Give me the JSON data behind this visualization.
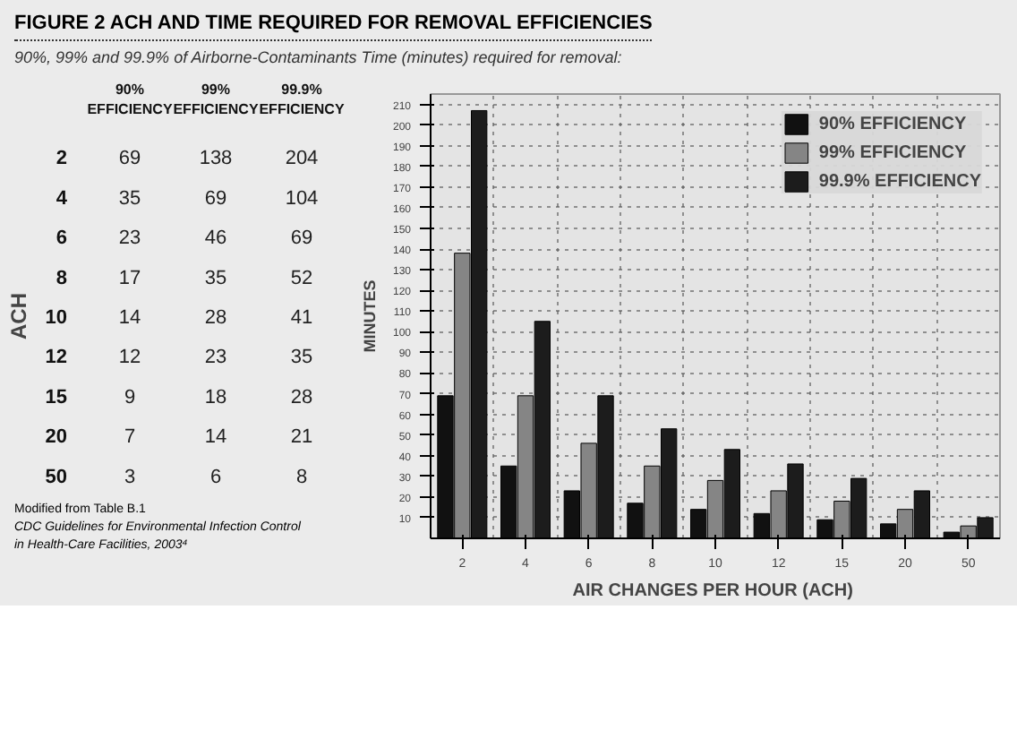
{
  "chart_data": [
    {
      "type": "heatmap",
      "title": "FIGURE 2  ACH AND TIME REQUIRED FOR REMOVAL EFFICIENCIES",
      "subtitle": "90%, 99% and 99.9% of Airborne-Contaminants Time (minutes) required for removal:",
      "ylabel": "ACH",
      "categories": [
        "90% EFFICIENCY",
        "99% EFFICIENCY",
        "99.9% EFFICIENCY"
      ],
      "y_categories": [
        "2",
        "4",
        "6",
        "8",
        "10",
        "12",
        "15",
        "20",
        "50"
      ],
      "data_labels": true,
      "cells": [
        [
          69,
          138,
          204
        ],
        [
          35,
          69,
          104
        ],
        [
          23,
          46,
          69
        ],
        [
          17,
          35,
          52
        ],
        [
          14,
          28,
          41
        ],
        [
          12,
          23,
          35
        ],
        [
          9,
          18,
          28
        ],
        [
          7,
          14,
          21
        ],
        [
          3,
          6,
          8
        ]
      ],
      "annotations": [
        "Modified from Table B.1",
        "CDC Guidelines for Environmental Infection Control in Health-Care Facilities, 2003⁴"
      ]
    },
    {
      "type": "bar",
      "xlabel": "AIR  CHANGES PER HOUR (ACH)",
      "ylabel": "MINUTES",
      "categories": [
        "2",
        "4",
        "6",
        "8",
        "10",
        "12",
        "15",
        "20",
        "50"
      ],
      "series": [
        {
          "name": "90% EFFICIENCY",
          "color": "#111111",
          "values": [
            69,
            35,
            23,
            17,
            14,
            12,
            9,
            7,
            3
          ]
        },
        {
          "name": "99% EFFICIENCY",
          "color": "#858585",
          "values": [
            138,
            69,
            46,
            35,
            28,
            23,
            18,
            14,
            6
          ]
        },
        {
          "name": "99.9% EFFICIENCY",
          "color": "#1c1c1c",
          "values": [
            207,
            105,
            69,
            53,
            43,
            36,
            29,
            23,
            10
          ]
        }
      ],
      "ylim": [
        0,
        215
      ],
      "yticks": [
        10,
        20,
        30,
        40,
        50,
        60,
        70,
        80,
        90,
        100,
        110,
        120,
        130,
        140,
        150,
        160,
        170,
        180,
        190,
        200,
        210
      ],
      "grid": true,
      "legend": "top right"
    }
  ]
}
